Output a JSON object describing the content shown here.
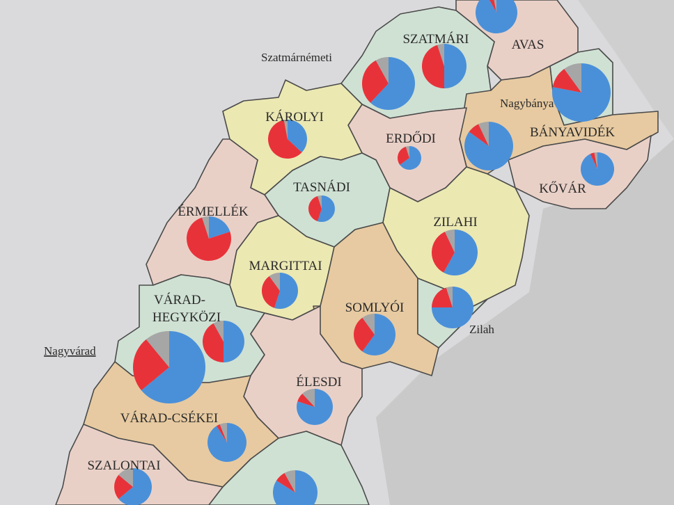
{
  "colors": {
    "pie_blue": "#4a90d9",
    "pie_red": "#e8323a",
    "pie_gray": "#a6a6a6",
    "region_green": "#cfe1d3",
    "region_yellow": "#ebe8b2",
    "region_pink": "#e9d0c7",
    "region_orange": "#e7caa1",
    "background": "#d9d9db",
    "relief": "#c9c9c9"
  },
  "regions": [
    {
      "id": "avas",
      "label": "AVAS",
      "color": "region_pink"
    },
    {
      "id": "szatmari",
      "label": "SZATMÁRI",
      "color": "region_green"
    },
    {
      "id": "nagybanya-area",
      "label": "",
      "color": "region_green"
    },
    {
      "id": "banyavidek",
      "label": "BÁNYAVIDÉK",
      "color": "region_orange"
    },
    {
      "id": "kovar",
      "label": "KŐVÁR",
      "color": "region_pink"
    },
    {
      "id": "erdodi",
      "label": "ERDŐDI",
      "color": "region_pink"
    },
    {
      "id": "karolyi",
      "label": "KÁROLYI",
      "color": "region_yellow"
    },
    {
      "id": "tasnadi",
      "label": "TASNÁDI",
      "color": "region_green"
    },
    {
      "id": "ermellek",
      "label": "ÉRMELLÉK",
      "color": "region_pink"
    },
    {
      "id": "zilahi",
      "label": "ZILAHI",
      "color": "region_yellow"
    },
    {
      "id": "margittai",
      "label": "MARGITTAI",
      "color": "region_yellow"
    },
    {
      "id": "somlyoi",
      "label": "SOMLYÓI",
      "color": "region_orange"
    },
    {
      "id": "zilah-area",
      "label": "",
      "color": "region_green"
    },
    {
      "id": "varad-hegykozi",
      "label": "VÁRAD-",
      "label2": "HEGYKÖZI",
      "color": "region_green"
    },
    {
      "id": "elesdi",
      "label": "ÉLESDI",
      "color": "region_pink"
    },
    {
      "id": "varad-csekei",
      "label": "VÁRAD-CSÉKEI",
      "color": "region_orange"
    },
    {
      "id": "szalontai",
      "label": "SZALONTAI",
      "color": "region_pink"
    },
    {
      "id": "bottom",
      "label": "",
      "color": "region_green"
    }
  ],
  "cities": [
    {
      "id": "szatmarnemeti",
      "label": "Szatmárnémeti",
      "underline": false
    },
    {
      "id": "nagybanya",
      "label": "Nagybánya",
      "underline": false
    },
    {
      "id": "zilah",
      "label": "Zilah",
      "underline": false
    },
    {
      "id": "nagyvarad",
      "label": "Nagyvárad",
      "underline": true
    }
  ],
  "chart_data": {
    "type": "pie",
    "slice_order": [
      "blue",
      "red",
      "gray"
    ],
    "pies": [
      {
        "id": "avas-top",
        "blue": 92,
        "red": 5,
        "gray": 3
      },
      {
        "id": "szatmari",
        "blue": 50,
        "red": 45,
        "gray": 5
      },
      {
        "id": "szatmarnemeti",
        "blue": 62,
        "red": 30,
        "gray": 8
      },
      {
        "id": "nagybanya",
        "blue": 78,
        "red": 12,
        "gray": 10
      },
      {
        "id": "karolyi",
        "blue": 37,
        "red": 60,
        "gray": 3
      },
      {
        "id": "erdodi",
        "blue": 65,
        "red": 30,
        "gray": 5
      },
      {
        "id": "banyavidek",
        "blue": 85,
        "red": 8,
        "gray": 7
      },
      {
        "id": "kovar",
        "blue": 93,
        "red": 4,
        "gray": 3
      },
      {
        "id": "tasnadi",
        "blue": 55,
        "red": 40,
        "gray": 5
      },
      {
        "id": "ermellek",
        "blue": 20,
        "red": 75,
        "gray": 5
      },
      {
        "id": "zilahi",
        "blue": 58,
        "red": 35,
        "gray": 7
      },
      {
        "id": "margittai",
        "blue": 55,
        "red": 35,
        "gray": 10
      },
      {
        "id": "zilah",
        "blue": 75,
        "red": 20,
        "gray": 5
      },
      {
        "id": "somlyoi",
        "blue": 60,
        "red": 30,
        "gray": 10
      },
      {
        "id": "varad-hegykozi",
        "blue": 50,
        "red": 42,
        "gray": 8
      },
      {
        "id": "nagyvarad",
        "blue": 64,
        "red": 25,
        "gray": 11
      },
      {
        "id": "elesdi",
        "blue": 80,
        "red": 8,
        "gray": 12
      },
      {
        "id": "varad-csekei",
        "blue": 91,
        "red": 3,
        "gray": 6
      },
      {
        "id": "szalontai",
        "blue": 64,
        "red": 22,
        "gray": 14
      },
      {
        "id": "bottom",
        "blue": 84,
        "red": 8,
        "gray": 8
      }
    ]
  }
}
